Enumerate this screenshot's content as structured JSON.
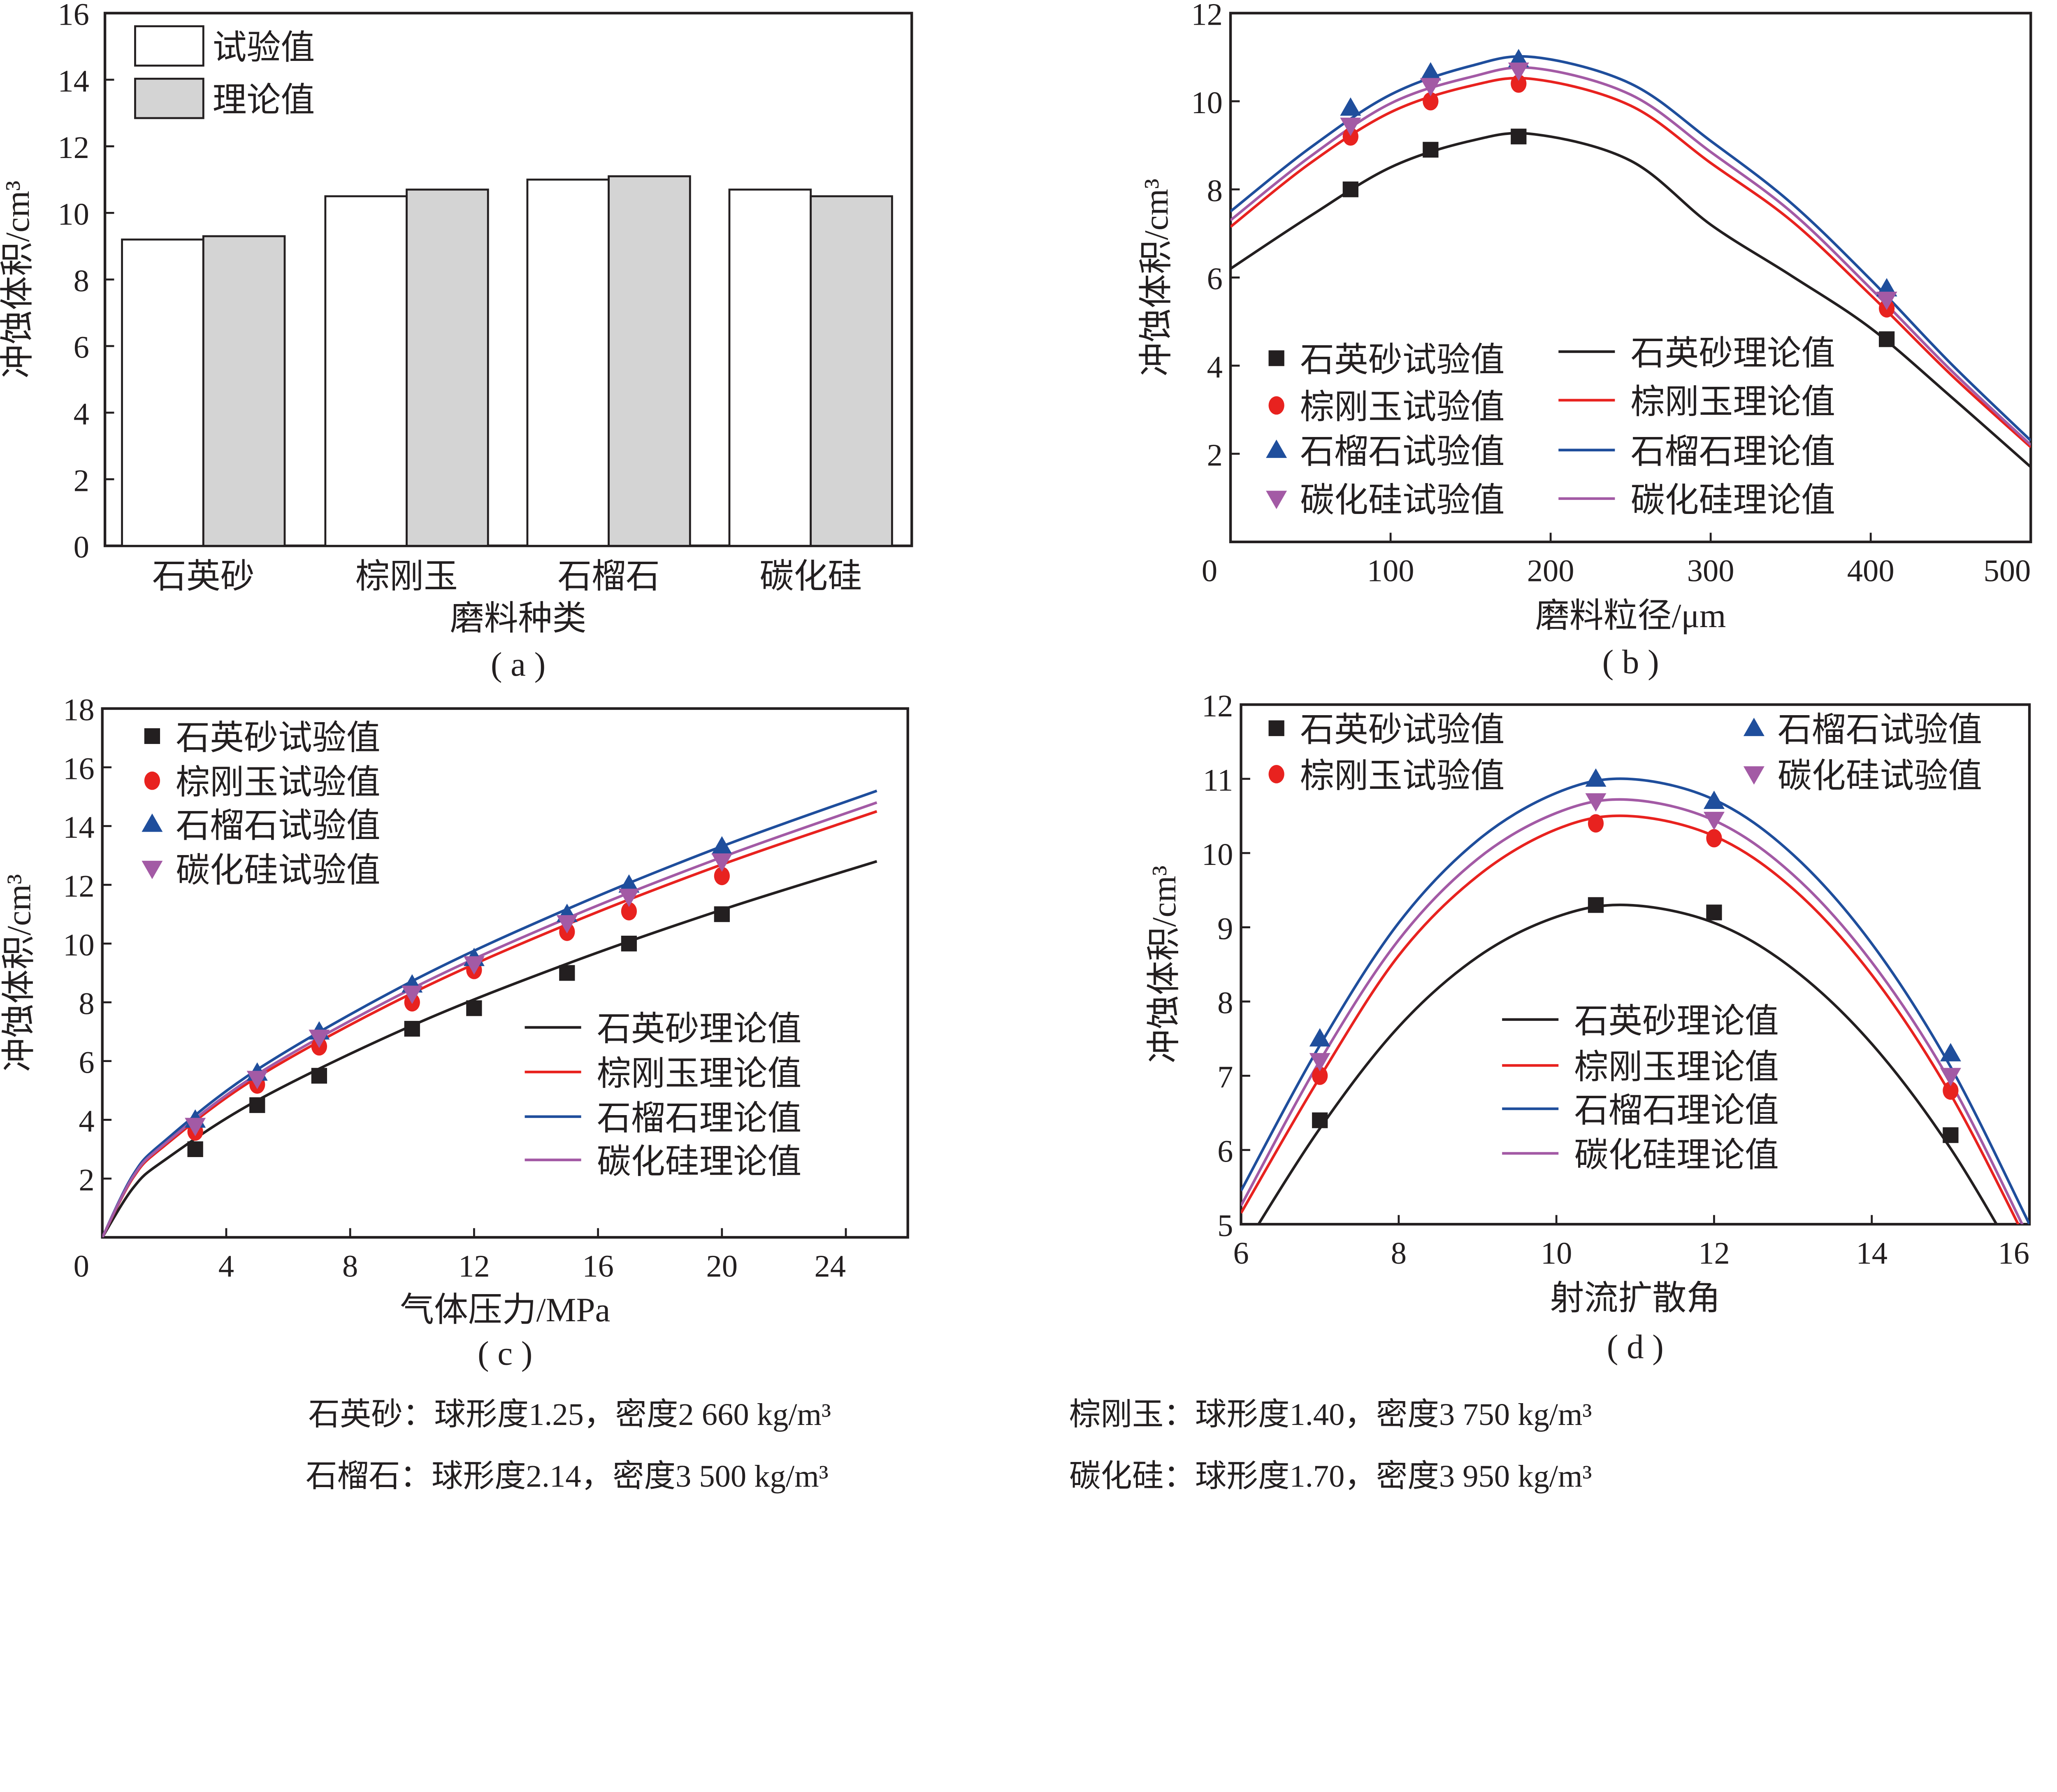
{
  "colors": {
    "quartz": "#231f20",
    "corundum": "#e8221f",
    "garnet": "#1f4e9c",
    "sic": "#a35aa5",
    "bar_exp": "#ffffff",
    "bar_theory": "#d4d4d4"
  },
  "chart_data": [
    {
      "id": "a",
      "type": "bar",
      "panel_label": "( a )",
      "xlabel": "磨料种类",
      "ylabel": "冲蚀体积/cm³",
      "ylim": [
        0,
        16
      ],
      "yticks": [
        0,
        2,
        4,
        6,
        8,
        10,
        12,
        14,
        16
      ],
      "categories": [
        "石英砂",
        "棕刚玉",
        "石榴石",
        "碳化硅"
      ],
      "series": [
        {
          "name": "试验值",
          "values": [
            9.2,
            10.5,
            11.0,
            10.7
          ]
        },
        {
          "name": "理论值",
          "values": [
            9.3,
            10.7,
            11.1,
            10.5
          ]
        }
      ],
      "legend": "top-left"
    },
    {
      "id": "b",
      "type": "scatter+line",
      "panel_label": "( b )",
      "xlabel": "磨料粒径/μm",
      "ylabel": "冲蚀体积/cm³",
      "xlim": [
        0,
        500
      ],
      "ylim": [
        0,
        12
      ],
      "xticks": [
        0,
        100,
        200,
        300,
        400,
        500
      ],
      "yticks": [
        2,
        4,
        6,
        8,
        10,
        12
      ],
      "legend": "bottom-left",
      "points": {
        "x": [
          75,
          125,
          180,
          410
        ],
        "series": [
          {
            "name": "石英砂试验值",
            "key": "quartz",
            "marker": "square",
            "values": [
              8.0,
              8.9,
              9.2,
              4.6
            ]
          },
          {
            "name": "棕刚玉试验值",
            "key": "corundum",
            "marker": "circle",
            "values": [
              9.2,
              10.0,
              10.4,
              5.3
            ]
          },
          {
            "name": "石榴石试验值",
            "key": "garnet",
            "marker": "triangle-up",
            "values": [
              9.85,
              10.65,
              10.95,
              5.75
            ]
          },
          {
            "name": "碳化硅试验值",
            "key": "sic",
            "marker": "triangle-down",
            "values": [
              9.45,
              10.35,
              10.7,
              5.5
            ]
          }
        ]
      },
      "curves": {
        "x": [
          0,
          50,
          100,
          150,
          190,
          250,
          300,
          350,
          400,
          450,
          500
        ],
        "series": [
          {
            "name": "石英砂理论值",
            "key": "quartz",
            "values": [
              6.2,
              7.4,
              8.5,
              9.1,
              9.25,
              8.65,
              7.2,
              6.05,
              4.85,
              3.3,
              1.7
            ]
          },
          {
            "name": "棕刚玉理论值",
            "key": "corundum",
            "values": [
              7.15,
              8.6,
              9.75,
              10.35,
              10.5,
              9.9,
              8.6,
              7.3,
              5.6,
              3.8,
              2.15
            ]
          },
          {
            "name": "石榴石理论值",
            "key": "garnet",
            "values": [
              7.5,
              8.95,
              10.15,
              10.8,
              11.0,
              10.4,
              9.1,
              7.7,
              5.95,
              4.05,
              2.3
            ]
          },
          {
            "name": "碳化硅理论值",
            "key": "sic",
            "values": [
              7.3,
              8.75,
              9.95,
              10.55,
              10.75,
              10.15,
              8.85,
              7.5,
              5.75,
              3.9,
              2.2
            ]
          }
        ]
      }
    },
    {
      "id": "c",
      "type": "scatter+line",
      "panel_label": "( c )",
      "xlabel": "气体压力/MPa",
      "ylabel": "冲蚀体积/cm³",
      "xlim": [
        0,
        26
      ],
      "ylim": [
        0,
        18
      ],
      "xticks": [
        0,
        4,
        8,
        12,
        16,
        20,
        24
      ],
      "yticks": [
        2,
        4,
        6,
        8,
        10,
        12,
        14,
        16,
        18
      ],
      "legend": "top-left / bottom-right",
      "points": {
        "x": [
          3,
          5,
          7,
          10,
          12,
          15,
          17,
          20
        ],
        "series": [
          {
            "name": "石英砂试验值",
            "key": "quartz",
            "marker": "square",
            "values": [
              3.0,
              4.5,
              5.5,
              7.1,
              7.8,
              9.0,
              10.0,
              11.0
            ]
          },
          {
            "name": "棕刚玉试验值",
            "key": "corundum",
            "marker": "circle",
            "values": [
              3.6,
              5.2,
              6.5,
              8.0,
              9.1,
              10.4,
              11.1,
              12.3
            ]
          },
          {
            "name": "石榴石试验值",
            "key": "garnet",
            "marker": "triangle-up",
            "values": [
              4.0,
              5.6,
              7.0,
              8.6,
              9.5,
              11.0,
              12.0,
              13.3
            ]
          },
          {
            "name": "碳化硅试验值",
            "key": "sic",
            "marker": "triangle-down",
            "values": [
              3.8,
              5.4,
              6.8,
              8.3,
              9.3,
              10.7,
              11.6,
              12.8
            ]
          }
        ]
      },
      "curves": {
        "x": [
          0,
          1,
          2,
          5,
          10,
          15,
          20,
          25
        ],
        "series": [
          {
            "name": "石英砂理论值",
            "key": "quartz",
            "values": [
              0,
              1.69,
              2.62,
              4.66,
              7.21,
              9.31,
              11.15,
              12.8
            ]
          },
          {
            "name": "棕刚玉理论值",
            "key": "corundum",
            "values": [
              0,
              2.04,
              3.11,
              5.45,
              8.31,
              10.65,
              12.69,
              14.5
            ]
          },
          {
            "name": "石榴石理论值",
            "key": "garnet",
            "values": [
              0,
              2.14,
              3.27,
              5.71,
              8.72,
              11.17,
              13.31,
              15.2
            ]
          },
          {
            "name": "碳化硅理论值",
            "key": "sic",
            "values": [
              0,
              2.08,
              3.17,
              5.55,
              8.47,
              10.86,
              12.94,
              14.8
            ]
          }
        ]
      }
    },
    {
      "id": "d",
      "type": "scatter+line",
      "panel_label": "( d )",
      "xlabel": "射流扩散角",
      "ylabel": "冲蚀体积/cm³",
      "xlim": [
        6,
        16
      ],
      "ylim": [
        5,
        12
      ],
      "xticks": [
        6,
        8,
        10,
        12,
        14,
        16
      ],
      "yticks": [
        5,
        6,
        7,
        8,
        9,
        10,
        11,
        12
      ],
      "legend": "top / bottom-center",
      "points": {
        "x": [
          7,
          10.5,
          12,
          15
        ],
        "series": [
          {
            "name": "石英砂试验值",
            "key": "quartz",
            "marker": "square",
            "values": [
              6.4,
              9.3,
              9.2,
              6.2
            ]
          },
          {
            "name": "棕刚玉试验值",
            "key": "corundum",
            "marker": "circle",
            "values": [
              7.0,
              10.4,
              10.2,
              6.8
            ]
          },
          {
            "name": "石榴石试验值",
            "key": "garnet",
            "marker": "triangle-up",
            "values": [
              7.5,
              11.0,
              10.7,
              7.3
            ]
          },
          {
            "name": "碳化硅试验值",
            "key": "sic",
            "marker": "triangle-down",
            "values": [
              7.2,
              10.7,
              10.45,
              7.0
            ]
          }
        ]
      },
      "curves": {
        "x": [
          6,
          7,
          8,
          9,
          10,
          10.9,
          12,
          13,
          14,
          15,
          16
        ],
        "series": [
          {
            "name": "石英砂理论值",
            "key": "quartz",
            "values": [
              4.62,
              6.29,
              7.66,
              8.6,
              9.14,
              9.3,
              9.06,
              8.44,
              7.43,
              6.02,
              4.23
            ]
          },
          {
            "name": "棕刚玉理论值",
            "key": "corundum",
            "values": [
              5.15,
              6.98,
              8.62,
              9.69,
              10.32,
              10.5,
              10.23,
              9.52,
              8.36,
              6.75,
              4.7
            ]
          },
          {
            "name": "石榴石理论值",
            "key": "garnet",
            "values": [
              5.45,
              7.41,
              9.06,
              10.17,
              10.81,
              11.0,
              10.72,
              9.98,
              8.78,
              7.12,
              5.0
            ]
          },
          {
            "name": "碳化硅理论值",
            "key": "sic",
            "values": [
              5.25,
              7.2,
              8.83,
              9.92,
              10.54,
              10.72,
              10.44,
              9.71,
              8.53,
              6.91,
              4.8
            ]
          }
        ]
      }
    }
  ],
  "footnotes": [
    "石英砂：球形度1.25，密度2 660 kg/m³",
    "棕刚玉：球形度1.40，密度3 750 kg/m³",
    "石榴石：球形度2.14，密度3 500 kg/m³",
    "碳化硅：球形度1.70，密度3 950 kg/m³"
  ]
}
